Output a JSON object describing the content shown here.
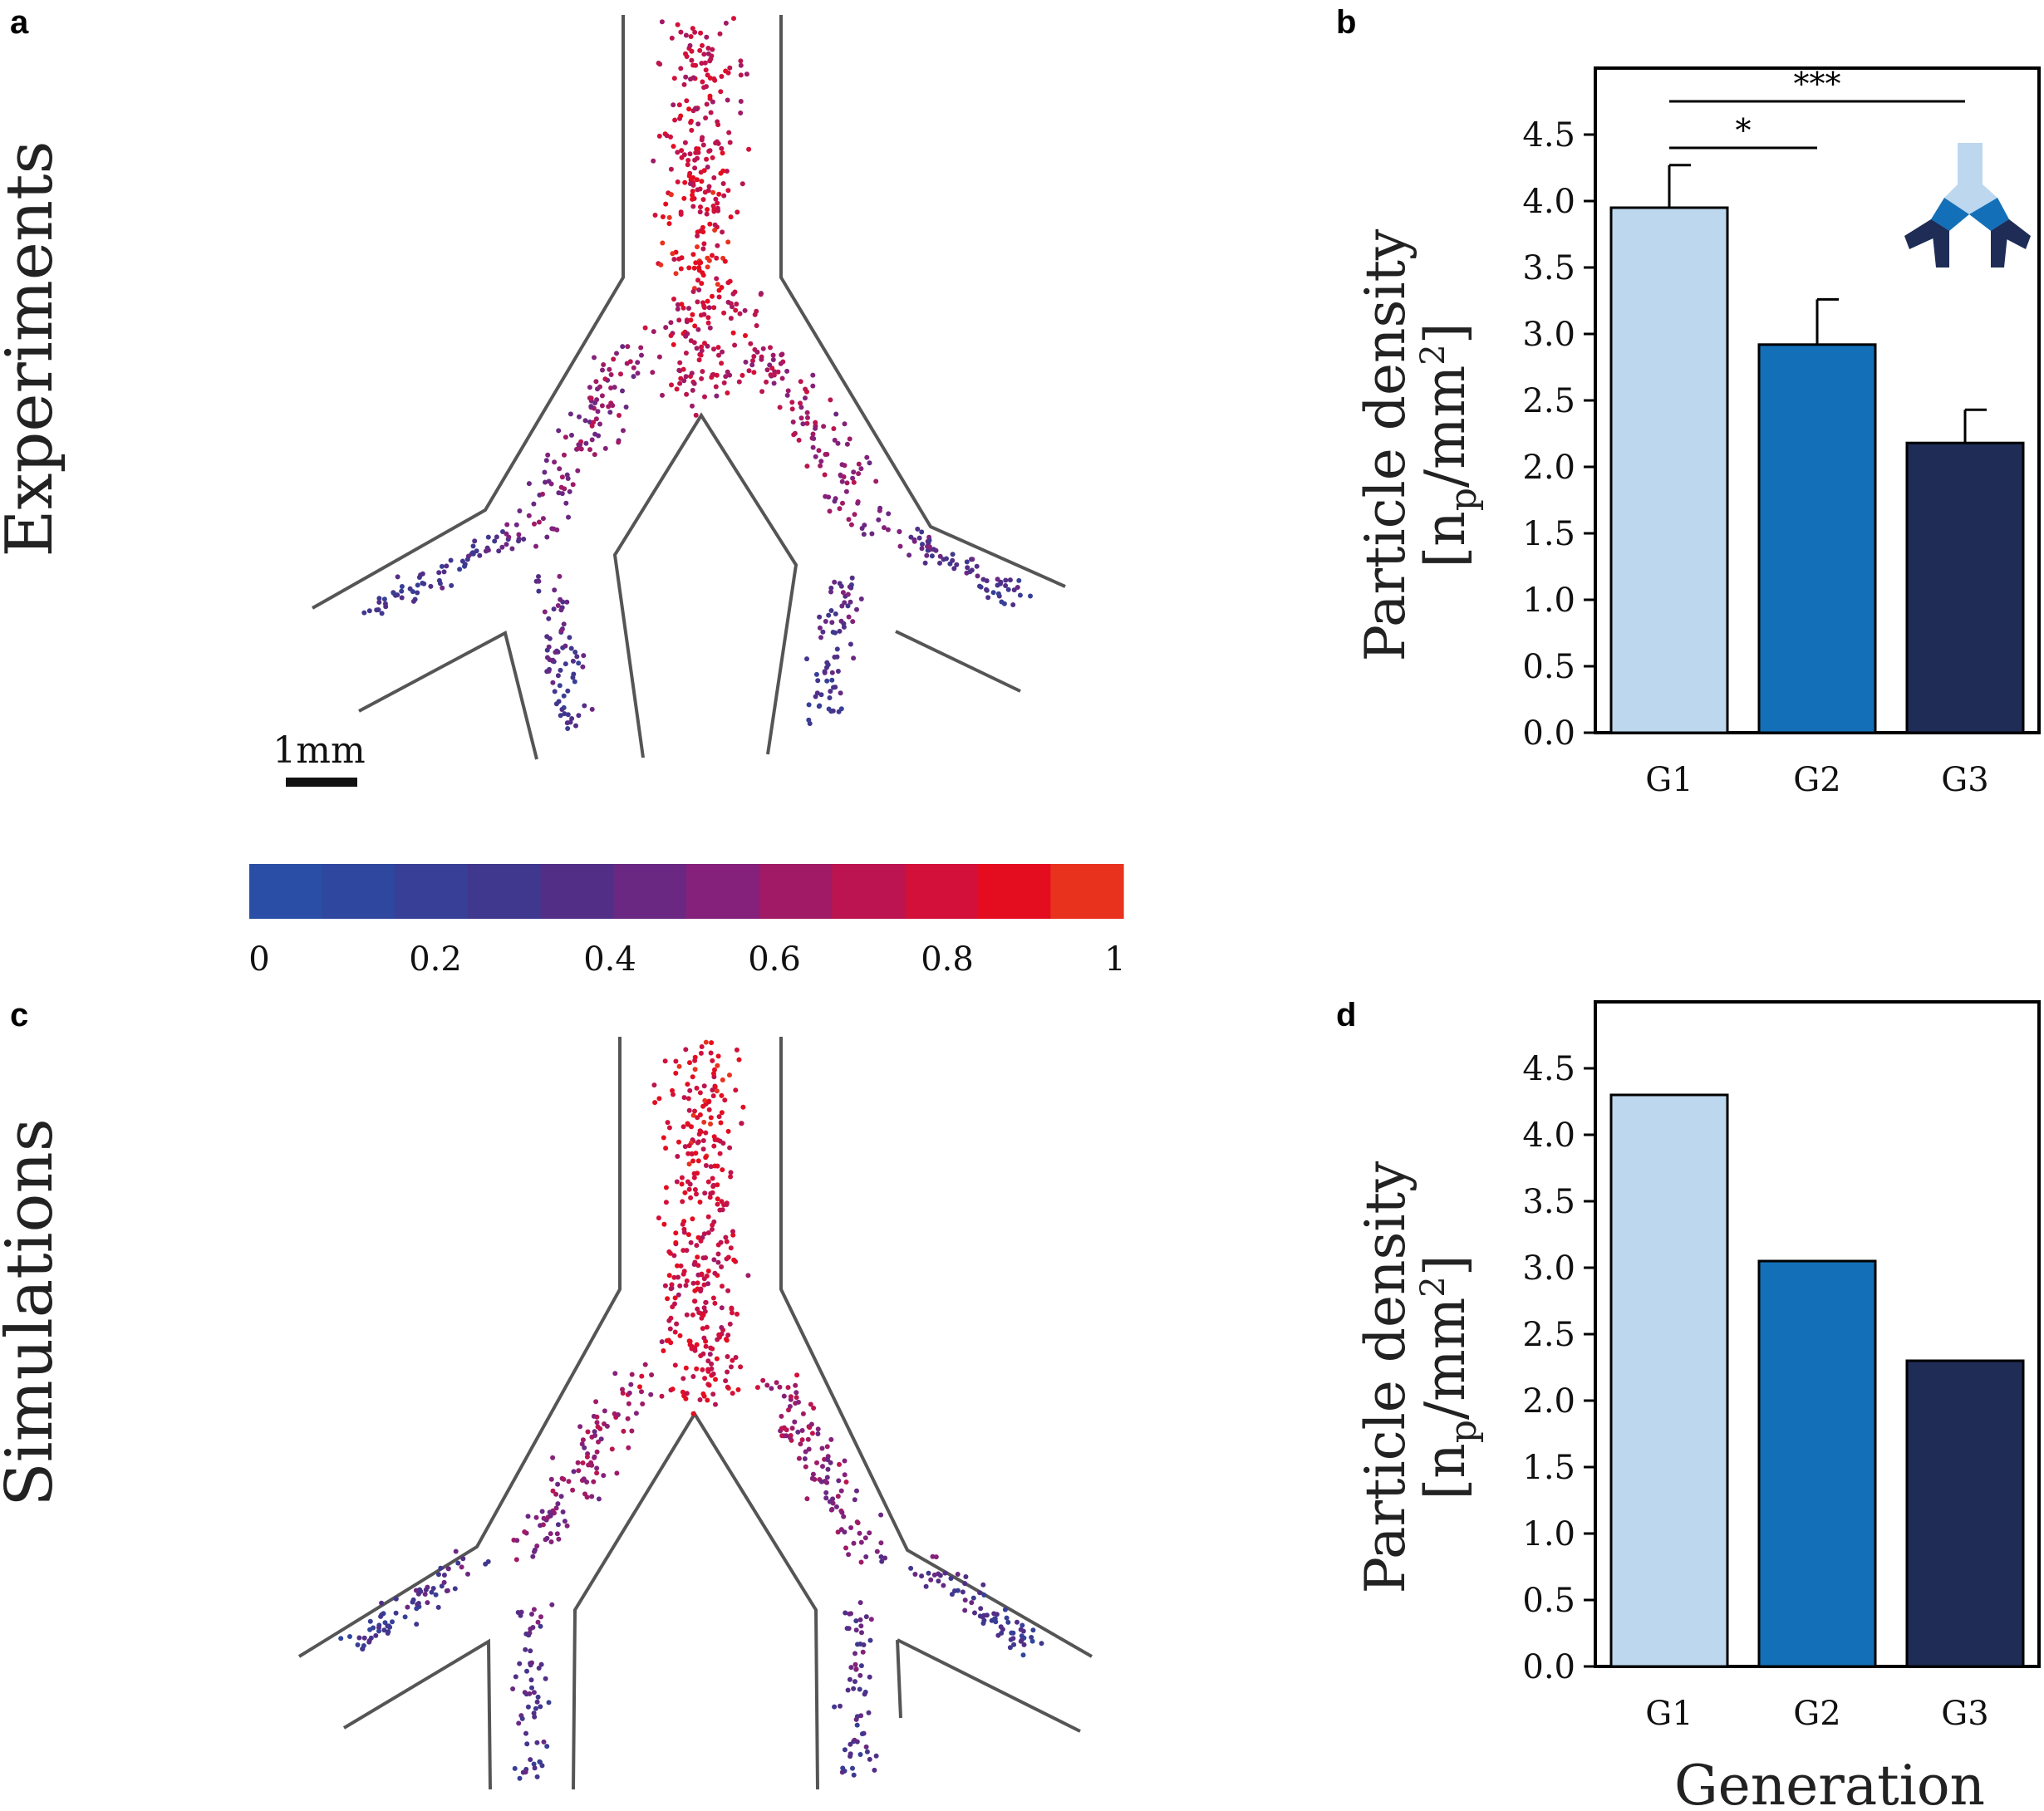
{
  "panel_labels": {
    "a": "a",
    "b": "b",
    "c": "c",
    "d": "d"
  },
  "row_labels": {
    "top": "Experiments",
    "bottom": "Simulations"
  },
  "scale_bar": {
    "label": "1mm"
  },
  "colorbar": {
    "ticks": [
      "0",
      "0.2",
      "0.4",
      "0.6",
      "0.8",
      "1"
    ],
    "colors": [
      "#2a4ea6",
      "#2f479e",
      "#373f96",
      "#40378e",
      "#522e87",
      "#6a2882",
      "#85217a",
      "#a01a66",
      "#bb1450",
      "#d2103a",
      "#e40d20",
      "#e8321e"
    ]
  },
  "colors": {
    "G1": "#bdd7ee",
    "G2": "#1370b8",
    "G3": "#1f2c56"
  },
  "chart_data": [
    {
      "panel": "b",
      "type": "bar",
      "categories": [
        "G1",
        "G2",
        "G3"
      ],
      "values": [
        3.95,
        2.92,
        2.18
      ],
      "errors": [
        0.32,
        0.34,
        0.25
      ],
      "ylabel_line1": "Particle density",
      "ylabel_line2": "[n",
      "ylabel_sub": "p",
      "ylabel_line2b": "/mm",
      "ylabel_sup": "2",
      "ylabel_end": "]",
      "xlabel": "",
      "ylim": [
        0,
        5.0
      ],
      "yticks": [
        "0.0",
        "0.5",
        "1.0",
        "1.5",
        "2.0",
        "2.5",
        "3.0",
        "3.5",
        "4.0",
        "4.5"
      ],
      "significance": [
        {
          "from": "G1",
          "to": "G2",
          "label": "*"
        },
        {
          "from": "G1",
          "to": "G3",
          "label": "***"
        }
      ]
    },
    {
      "panel": "d",
      "type": "bar",
      "categories": [
        "G1",
        "G2",
        "G3"
      ],
      "values": [
        4.3,
        3.05,
        2.3
      ],
      "ylabel_line1": "Particle density",
      "ylabel_line2": "[n",
      "ylabel_sub": "p",
      "ylabel_line2b": "/mm",
      "ylabel_sup": "2",
      "ylabel_end": "]",
      "xlabel": "Generation",
      "ylim": [
        0,
        5.0
      ],
      "yticks": [
        "0.0",
        "0.5",
        "1.0",
        "1.5",
        "2.0",
        "2.5",
        "3.0",
        "3.5",
        "4.0",
        "4.5"
      ]
    }
  ]
}
